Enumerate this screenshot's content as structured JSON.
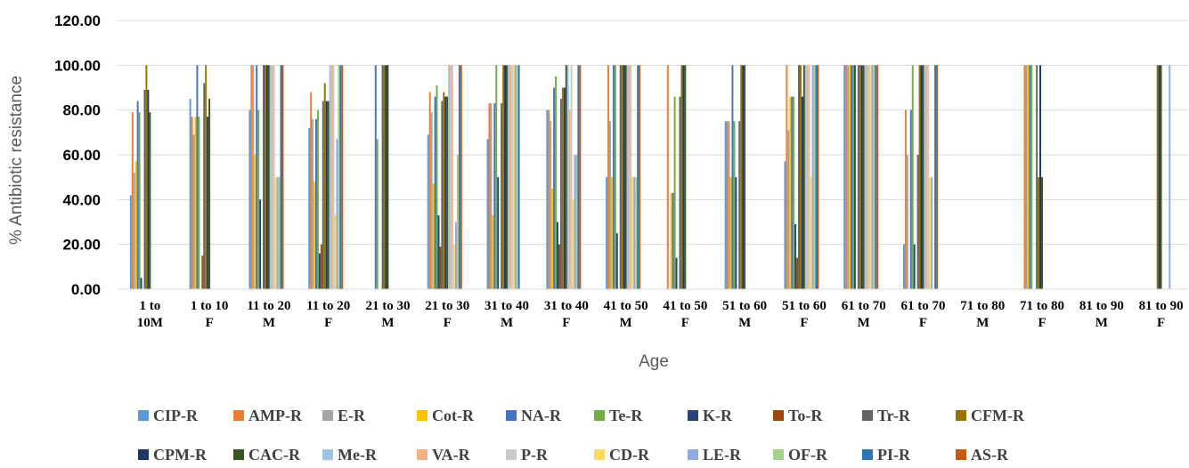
{
  "chart_data": {
    "type": "bar",
    "xlabel": "Age",
    "ylabel": "% Antibiotic resistance",
    "ylim": [
      0,
      120
    ],
    "y_ticks": [
      "0.00",
      "20.00",
      "40.00",
      "60.00",
      "80.00",
      "100.00",
      "120.00"
    ],
    "grid": "horizontal",
    "legend_position": "bottom",
    "categories": [
      [
        "1 to",
        "10M"
      ],
      [
        "1 to 10",
        "F"
      ],
      [
        "11 to 20",
        "M"
      ],
      [
        "11 to 20",
        "F"
      ],
      [
        "21 to 30",
        "M"
      ],
      [
        "21 to 30",
        "F"
      ],
      [
        "31 to 40",
        "M"
      ],
      [
        "31 to 40",
        "F"
      ],
      [
        "41 to 50",
        "M"
      ],
      [
        "41 to 50",
        "F"
      ],
      [
        "51 to 60",
        "M"
      ],
      [
        "51 to 60",
        "F"
      ],
      [
        "61 to 70",
        "M"
      ],
      [
        "61 to 70",
        "F"
      ],
      [
        "71 to 80",
        "M"
      ],
      [
        "71 to 80",
        "F"
      ],
      [
        "81 to 90",
        "M"
      ],
      [
        "81 to 90",
        "F"
      ]
    ],
    "series": [
      {
        "name": "CIP-R",
        "color": "#5b9bd5",
        "values": [
          42,
          85,
          80,
          72,
          0,
          69,
          67,
          80,
          50,
          0,
          75,
          57,
          100,
          20,
          0,
          0,
          0,
          0
        ]
      },
      {
        "name": "AMP-R",
        "color": "#ed7d31",
        "values": [
          79,
          77,
          100,
          88,
          0,
          88,
          83,
          80,
          100,
          100,
          75,
          100,
          100,
          80,
          0,
          100,
          0,
          0
        ]
      },
      {
        "name": "E-R",
        "color": "#a5a5a5",
        "values": [
          52,
          69,
          100,
          76,
          0,
          79,
          83,
          75,
          75,
          0,
          75,
          71,
          100,
          60,
          0,
          100,
          0,
          0
        ]
      },
      {
        "name": "Cot-R",
        "color": "#ffc000",
        "values": [
          57,
          77,
          60,
          48,
          0,
          47,
          33,
          45,
          50,
          43,
          50,
          86,
          100,
          0,
          0,
          100,
          0,
          0
        ]
      },
      {
        "name": "NA-R",
        "color": "#4472c4",
        "values": [
          84,
          100,
          100,
          76,
          100,
          86,
          83,
          90,
          100,
          43,
          100,
          86,
          100,
          80,
          0,
          100,
          0,
          0
        ]
      },
      {
        "name": "Te-R",
        "color": "#70ad47",
        "values": [
          79,
          77,
          80,
          80,
          67,
          91,
          100,
          95,
          100,
          86,
          75,
          86,
          100,
          100,
          0,
          100,
          0,
          0
        ]
      },
      {
        "name": "K-R",
        "color": "#264478",
        "values": [
          5,
          0,
          40,
          16,
          0,
          33,
          50,
          30,
          25,
          14,
          50,
          29,
          100,
          20,
          0,
          0,
          0,
          0
        ]
      },
      {
        "name": "To-R",
        "color": "#9e480e",
        "values": [
          0,
          15,
          0,
          20,
          0,
          19,
          0,
          20,
          0,
          0,
          0,
          14,
          0,
          0,
          0,
          0,
          0,
          0
        ]
      },
      {
        "name": "Tr-R",
        "color": "#636363",
        "values": [
          89,
          92,
          100,
          84,
          100,
          84,
          83,
          85,
          100,
          86,
          75,
          100,
          100,
          60,
          0,
          100,
          0,
          0
        ]
      },
      {
        "name": "CFM-R",
        "color": "#997300",
        "values": [
          100,
          100,
          100,
          92,
          100,
          88,
          100,
          90,
          100,
          100,
          100,
          100,
          100,
          100,
          0,
          50,
          0,
          100
        ]
      },
      {
        "name": "CPM-R",
        "color": "#203864",
        "values": [
          89,
          77,
          100,
          84,
          100,
          86,
          100,
          90,
          100,
          100,
          100,
          86,
          100,
          100,
          0,
          100,
          0,
          100
        ]
      },
      {
        "name": "CAC-R",
        "color": "#375623",
        "values": [
          79,
          85,
          100,
          84,
          100,
          86,
          100,
          100,
          100,
          100,
          100,
          100,
          100,
          100,
          0,
          50,
          0,
          100
        ]
      },
      {
        "name": "Me-R",
        "color": "#9dc3e6",
        "values": [
          0,
          0,
          100,
          100,
          0,
          100,
          100,
          100,
          100,
          0,
          0,
          100,
          100,
          100,
          0,
          0,
          0,
          0
        ]
      },
      {
        "name": "VA-R",
        "color": "#f4b183",
        "values": [
          0,
          0,
          100,
          100,
          0,
          100,
          100,
          80,
          100,
          0,
          0,
          100,
          100,
          100,
          0,
          0,
          0,
          0
        ]
      },
      {
        "name": "P-R",
        "color": "#c9c9c9",
        "values": [
          0,
          0,
          100,
          100,
          0,
          100,
          100,
          100,
          100,
          0,
          0,
          100,
          100,
          100,
          0,
          0,
          0,
          0
        ]
      },
      {
        "name": "CD-R",
        "color": "#ffd966",
        "values": [
          0,
          0,
          50,
          33,
          0,
          20,
          100,
          40,
          50,
          0,
          0,
          50,
          100,
          50,
          0,
          0,
          0,
          0
        ]
      },
      {
        "name": "LE-R",
        "color": "#8faadc",
        "values": [
          0,
          0,
          50,
          67,
          0,
          30,
          100,
          60,
          50,
          0,
          0,
          100,
          100,
          50,
          0,
          0,
          0,
          100
        ]
      },
      {
        "name": "OF-R",
        "color": "#a9d18e",
        "values": [
          0,
          0,
          50,
          100,
          0,
          60,
          100,
          60,
          50,
          0,
          0,
          100,
          100,
          0,
          0,
          0,
          0,
          0
        ]
      },
      {
        "name": "PI-R",
        "color": "#2e75b6",
        "values": [
          0,
          0,
          100,
          100,
          0,
          100,
          100,
          100,
          100,
          0,
          0,
          100,
          100,
          100,
          0,
          0,
          0,
          0
        ]
      },
      {
        "name": "AS-R",
        "color": "#c55a11",
        "values": [
          0,
          0,
          100,
          100,
          0,
          100,
          0,
          100,
          100,
          0,
          0,
          100,
          100,
          100,
          0,
          0,
          0,
          0
        ]
      }
    ]
  }
}
